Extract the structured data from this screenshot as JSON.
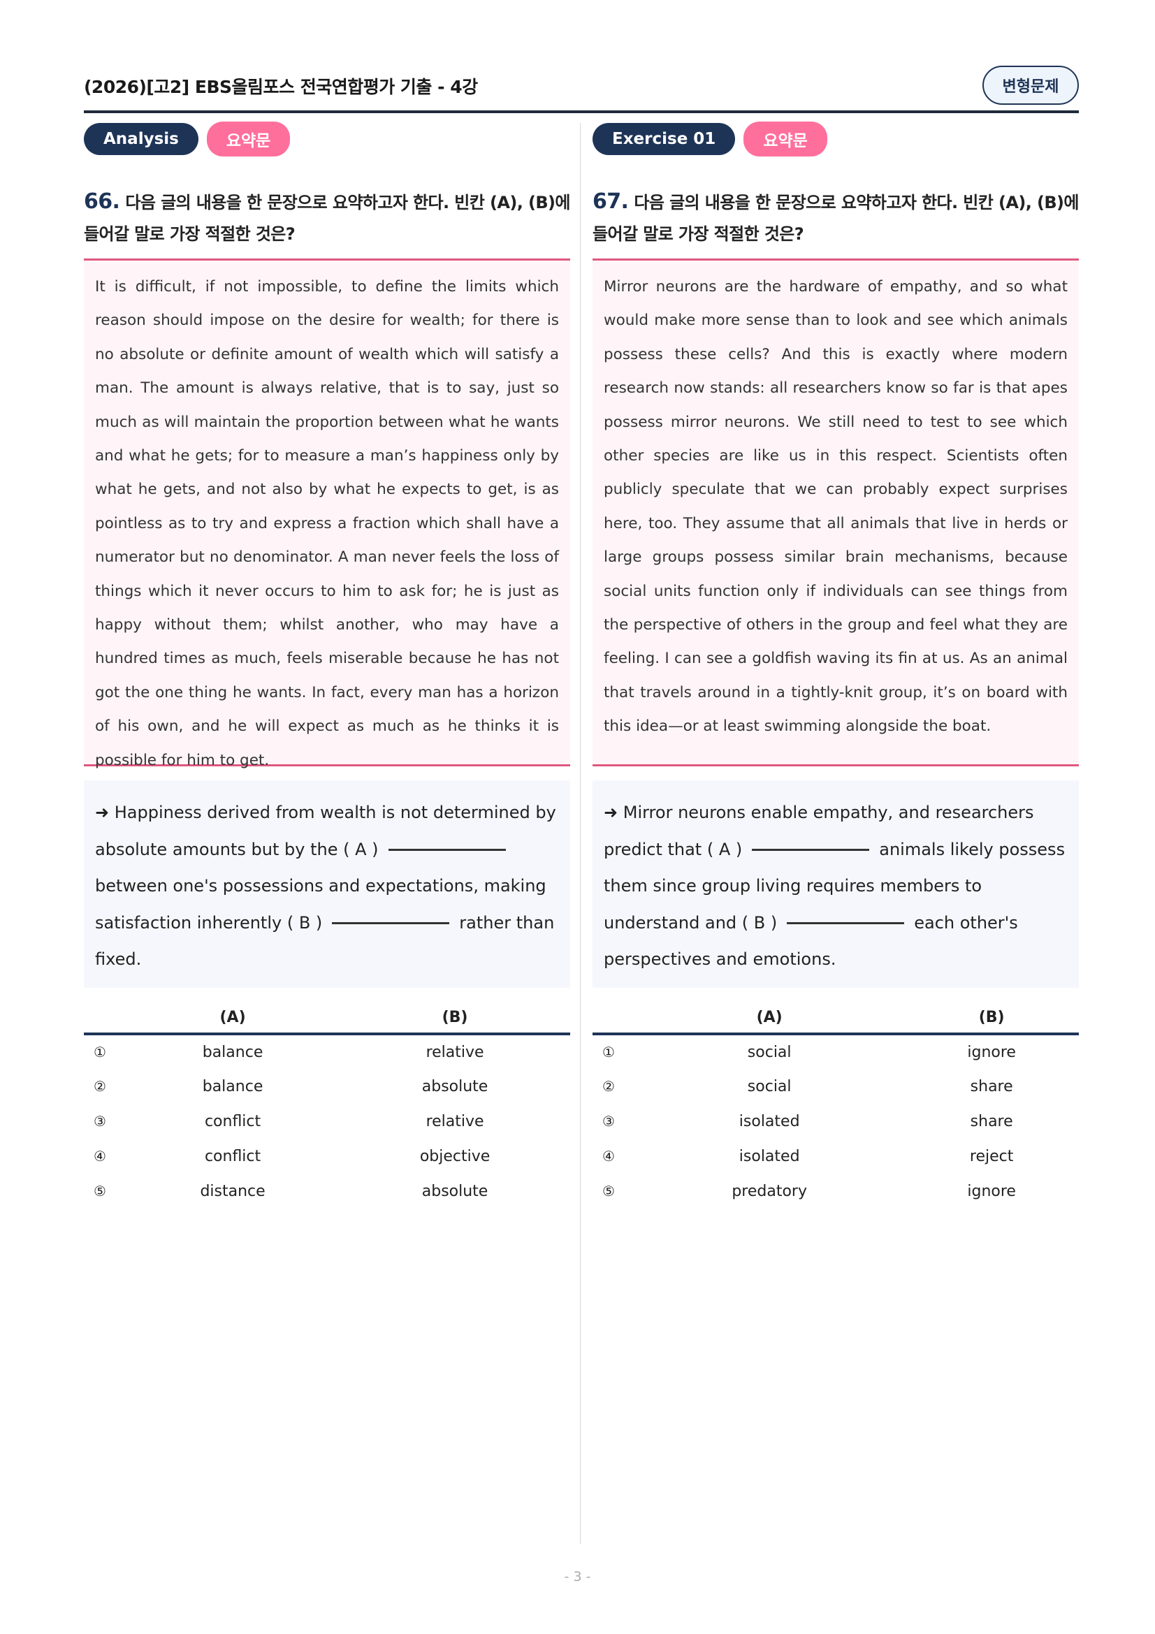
{
  "header": {
    "title": "(2026)[고2] EBS올림포스 전국연합평가 기출 - 4강",
    "badge": "변형문제"
  },
  "left": {
    "tag": "Analysis",
    "type": "요약문",
    "number": "66.",
    "question": "다음 글의 내용을 한 문장으로 요약하고자 한다. 빈칸 (A), (B)에 들어갈 말로 가장 적절한 것은?",
    "passage": "It is difficult, if not impossible, to define the limits which reason should impose on the desire for wealth; for there is no absolute or definite amount of wealth which will satisfy a man. The amount is always relative, that is to say, just so much as will maintain the proportion between what he wants and what he gets; for to measure a man’s happiness only by what he gets, and not also by what he expects to get, is as pointless as to try and express a fraction which shall have a numerator but no denominator. A man never feels the loss of things which it never occurs to him to ask for; he is just as happy without them; whilst another, who may have a hundred times as much, feels miserable because he has not got the one thing he wants. In fact, every man has a horizon of his own, and he will expect as much as he thinks it is possible for him to get.",
    "summary": {
      "p1": "➜ Happiness derived from wealth is not determined by absolute amounts but by the ( A )",
      "p2": "between one's possessions and expectations, making satisfaction inherently ( B )",
      "p3": "rather than fixed."
    },
    "headers": [
      "(A)",
      "(B)"
    ],
    "options": [
      {
        "n": "①",
        "a": "balance",
        "b": "relative"
      },
      {
        "n": "②",
        "a": "balance",
        "b": "absolute"
      },
      {
        "n": "③",
        "a": "conflict",
        "b": "relative"
      },
      {
        "n": "④",
        "a": "conflict",
        "b": "objective"
      },
      {
        "n": "⑤",
        "a": "distance",
        "b": "absolute"
      }
    ]
  },
  "right": {
    "tag": "Exercise 01",
    "type": "요약문",
    "number": "67.",
    "question": "다음 글의 내용을 한 문장으로 요약하고자 한다. 빈칸 (A), (B)에 들어갈 말로 가장 적절한 것은?",
    "passage": "Mirror neurons are the hardware of empathy, and so what would make more sense than to look and see which animals possess these cells? And this is exactly where modern research now stands: all researchers know so far is that apes possess mirror neurons. We still need to test to see which other species are like us in this respect. Scientists often publicly speculate that we can probably expect surprises here, too. They assume that all animals that live in herds or large groups possess similar brain mechanisms, because social units function only if individuals can see things from the perspective of others in the group and feel what they are feeling. I can see a goldfish waving its fin at us. As an animal that travels around in a tightly-knit group, it’s on board with this idea—or at least swimming alongside the boat.",
    "summary": {
      "p1": "➜ Mirror neurons enable empathy, and researchers predict that ( A )",
      "p2": "animals likely possess them since group living requires members to understand and ( B )",
      "p3": "each other's perspectives and emotions."
    },
    "headers": [
      "(A)",
      "(B)"
    ],
    "options": [
      {
        "n": "①",
        "a": "social",
        "b": "ignore"
      },
      {
        "n": "②",
        "a": "social",
        "b": "share"
      },
      {
        "n": "③",
        "a": "isolated",
        "b": "share"
      },
      {
        "n": "④",
        "a": "isolated",
        "b": "reject"
      },
      {
        "n": "⑤",
        "a": "predatory",
        "b": "ignore"
      }
    ]
  },
  "footer": {
    "page": "- 3 -"
  }
}
